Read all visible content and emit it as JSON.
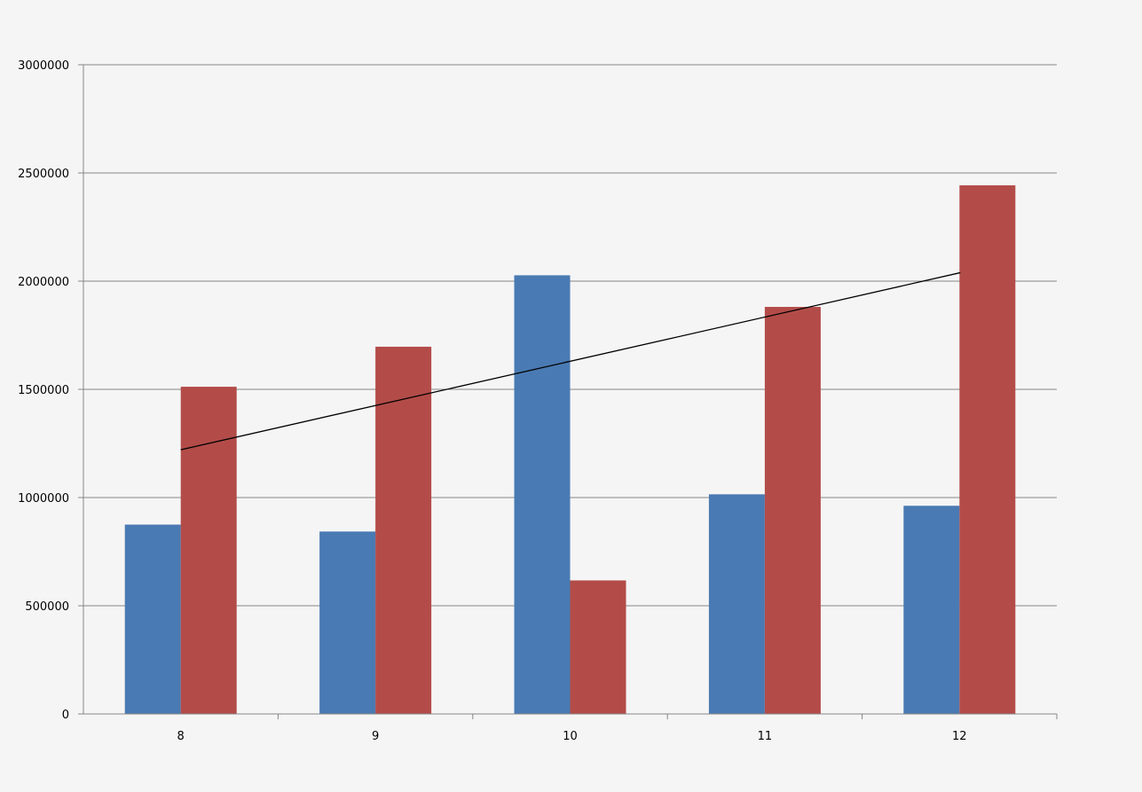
{
  "chart_data": {
    "type": "bar",
    "categories": [
      "8",
      "9",
      "10",
      "11",
      "12"
    ],
    "series": [
      {
        "values": [
          875000,
          843000,
          2027000,
          1015000,
          962000
        ],
        "color": "#4a7ab3"
      },
      {
        "values": [
          1512000,
          1697000,
          617000,
          1881000,
          2443000
        ],
        "color": "#b34c49"
      }
    ],
    "trendline": {
      "series_index": 1,
      "type": "linear",
      "color": "#000000"
    },
    "ylim": [
      0,
      3000000
    ],
    "yticks": [
      "0",
      "500000",
      "1000000",
      "1500000",
      "2000000",
      "2500000",
      "3000000"
    ],
    "title": "",
    "xlabel": "",
    "ylabel": "",
    "grid": true,
    "legend": "none"
  }
}
